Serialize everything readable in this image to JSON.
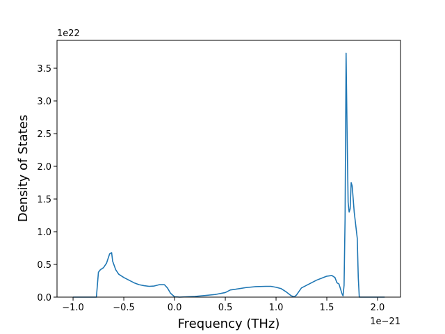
{
  "chart_data": {
    "type": "line",
    "xlabel": "Frequency (THz)",
    "ylabel": "Density of States",
    "x_offset_label": "1e−21",
    "y_offset_label": "1e22",
    "color": "#1f77b4",
    "grid": false,
    "xlim": [
      -1.158,
      2.226
    ],
    "ylim": [
      0,
      3.926
    ],
    "xticks": [
      {
        "value": -1,
        "label": "−1.0"
      },
      {
        "value": -0.5,
        "label": "−0.5"
      },
      {
        "value": 0,
        "label": "0.0"
      },
      0.5,
      {
        "value": 1,
        "label": "1.0"
      },
      1.5,
      {
        "value": 2,
        "label": "2.0"
      }
    ],
    "yticks": [
      {
        "value": 0,
        "label": "0.0"
      },
      0.5,
      {
        "value": 1,
        "label": "1.0"
      },
      1.5,
      {
        "value": 2,
        "label": "2.0"
      },
      2.5,
      {
        "value": 3,
        "label": "3.0"
      },
      3.5
    ],
    "x": [
      -1.0,
      -0.77,
      -0.75,
      -0.73,
      -0.7,
      -0.67,
      -0.64,
      -0.62,
      -0.61,
      -0.58,
      -0.55,
      -0.5,
      -0.45,
      -0.4,
      -0.35,
      -0.3,
      -0.25,
      -0.2,
      -0.15,
      -0.1,
      -0.07,
      -0.04,
      0,
      0.05,
      0.2,
      0.4,
      0.5,
      0.55,
      0.6,
      0.7,
      0.8,
      0.9,
      0.95,
      1.0,
      1.05,
      1.1,
      1.15,
      1.18,
      1.2,
      1.25,
      1.3,
      1.35,
      1.4,
      1.45,
      1.5,
      1.55,
      1.58,
      1.6,
      1.62,
      1.65,
      1.66,
      1.67,
      1.68,
      1.69,
      1.7,
      1.71,
      1.72,
      1.73,
      1.74,
      1.75,
      1.76,
      1.77,
      1.8,
      1.81,
      1.82,
      2.07
    ],
    "values": [
      0,
      0,
      0.38,
      0.42,
      0.45,
      0.52,
      0.66,
      0.68,
      0.55,
      0.42,
      0.35,
      0.3,
      0.26,
      0.22,
      0.19,
      0.175,
      0.165,
      0.17,
      0.19,
      0.19,
      0.14,
      0.06,
      0.005,
      0,
      0.01,
      0.04,
      0.07,
      0.11,
      0.12,
      0.145,
      0.16,
      0.165,
      0.165,
      0.15,
      0.13,
      0.08,
      0.02,
      0.005,
      0.03,
      0.14,
      0.18,
      0.22,
      0.26,
      0.29,
      0.32,
      0.33,
      0.3,
      0.22,
      0.2,
      0.05,
      0.02,
      0.18,
      1.2,
      3.73,
      2.5,
      1.45,
      1.3,
      1.35,
      1.75,
      1.7,
      1.5,
      1.3,
      0.9,
      0.3,
      0,
      0
    ]
  }
}
